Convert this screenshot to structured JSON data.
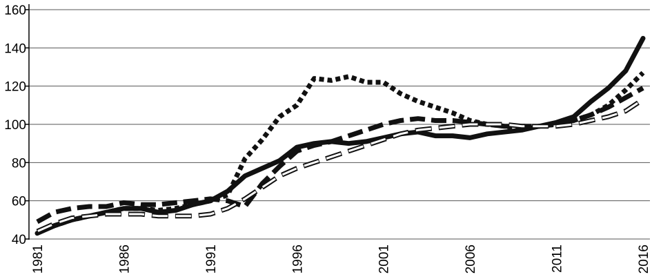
{
  "chart_data": {
    "type": "line",
    "title": "",
    "xlabel": "",
    "ylabel": "",
    "xlim": [
      1981,
      2016
    ],
    "ylim": [
      40,
      160
    ],
    "yticks": [
      40,
      60,
      80,
      100,
      120,
      140,
      160
    ],
    "xticks": [
      "1981",
      "1986",
      "1991",
      "1996",
      "2001",
      "2006",
      "2011",
      "2016"
    ],
    "grid": "horizontal",
    "legend": "none",
    "x": [
      1981,
      1982,
      1983,
      1984,
      1985,
      1986,
      1987,
      1988,
      1989,
      1990,
      1991,
      1992,
      1993,
      1994,
      1995,
      1996,
      1997,
      1998,
      1999,
      2000,
      2001,
      2002,
      2003,
      2004,
      2005,
      2006,
      2007,
      2008,
      2009,
      2010,
      2011,
      2012,
      2013,
      2014,
      2015,
      2016
    ],
    "series": [
      {
        "style": "solid",
        "color": "#111111",
        "values": [
          43,
          47,
          50,
          52,
          54,
          56,
          56,
          54,
          55,
          58,
          60,
          65,
          73,
          77,
          81,
          88,
          90,
          91,
          90,
          91,
          93,
          95,
          96,
          94,
          94,
          93,
          95,
          96,
          97,
          99,
          101,
          104,
          112,
          119,
          128,
          145
        ]
      },
      {
        "style": "dotted",
        "color": "#111111",
        "values": [
          44,
          47,
          50,
          52,
          54,
          56,
          56,
          55,
          56,
          58,
          60,
          63,
          82,
          92,
          104,
          110,
          124,
          123,
          125,
          122,
          122,
          116,
          112,
          109,
          106,
          102,
          100,
          99,
          98,
          99,
          100,
          102,
          105,
          110,
          118,
          127
        ]
      },
      {
        "style": "dashed",
        "color": "#111111",
        "values": [
          49,
          54,
          56,
          57,
          57,
          59,
          58,
          58,
          59,
          60,
          61,
          60,
          57,
          69,
          78,
          86,
          89,
          91,
          94,
          97,
          100,
          102,
          103,
          102,
          102,
          101,
          100,
          99,
          99,
          99,
          100,
          102,
          105,
          109,
          114,
          119
        ]
      },
      {
        "style": "outlined-dashed",
        "color": "#111111",
        "values": [
          44,
          48,
          51,
          52,
          53,
          53,
          53,
          52,
          52,
          52,
          53,
          56,
          61,
          67,
          73,
          77,
          80,
          83,
          86,
          89,
          92,
          95,
          97,
          98,
          99,
          100,
          100,
          100,
          99,
          99,
          99,
          100,
          102,
          104,
          107,
          113
        ]
      }
    ]
  }
}
